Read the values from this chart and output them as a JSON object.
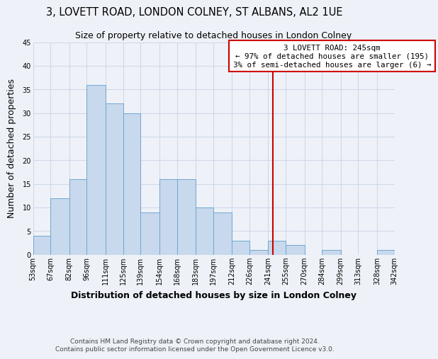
{
  "title": "3, LOVETT ROAD, LONDON COLNEY, ST ALBANS, AL2 1UE",
  "subtitle": "Size of property relative to detached houses in London Colney",
  "xlabel": "Distribution of detached houses by size in London Colney",
  "ylabel": "Number of detached properties",
  "bin_edges": [
    53,
    67,
    82,
    96,
    111,
    125,
    139,
    154,
    168,
    183,
    197,
    212,
    226,
    241,
    255,
    270,
    284,
    299,
    313,
    328,
    342
  ],
  "bar_heights": [
    4,
    12,
    16,
    36,
    32,
    30,
    9,
    16,
    16,
    10,
    9,
    3,
    1,
    3,
    2,
    0,
    1,
    0,
    0,
    1
  ],
  "bar_color": "#c8d8ed",
  "bar_edge_color": "#6fa8d0",
  "vline_x": 245,
  "vline_color": "#cc0000",
  "annotation_text": "3 LOVETT ROAD: 245sqm\n← 97% of detached houses are smaller (195)\n3% of semi-detached houses are larger (6) →",
  "annotation_box_color": "#ffffff",
  "annotation_box_edge_color": "#cc0000",
  "ylim": [
    0,
    45
  ],
  "yticks": [
    0,
    5,
    10,
    15,
    20,
    25,
    30,
    35,
    40,
    45
  ],
  "footer_line1": "Contains HM Land Registry data © Crown copyright and database right 2024.",
  "footer_line2": "Contains public sector information licensed under the Open Government Licence v3.0.",
  "bg_color": "#eef2f8",
  "title_fontsize": 10.5,
  "subtitle_fontsize": 9,
  "tick_label_fontsize": 7,
  "axis_label_fontsize": 9,
  "footer_fontsize": 6.5
}
